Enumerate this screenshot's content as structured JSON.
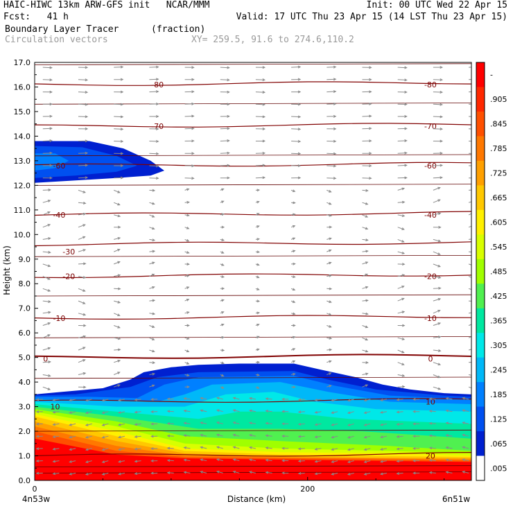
{
  "header": {
    "line1_left": "HAIC-HIWC 13km ARW-GFS init   NCAR/MMM",
    "line1_right": "Init: 00 UTC Wed 22 Apr 15",
    "line2_left": "Fcst:   41 h",
    "line2_right": "Valid: 17 UTC Thu 23 Apr 15 (14 LST Thu 23 Apr 15)",
    "field_name": "Boundary Layer Tracer",
    "field_units": "(fraction)",
    "vectors_label": "Circulation vectors",
    "cross_section": "XY= 259.5, 91.6 to 274.6,110.2"
  },
  "chart_data": {
    "type": "heatmap",
    "title": "Boundary Layer Tracer",
    "units": "(fraction)",
    "xlabel": "Distance (km)",
    "ylabel": "Height (km)",
    "xlim": [
      0,
      320
    ],
    "ylim": [
      0,
      17
    ],
    "x_tick_values": [
      0,
      200
    ],
    "x_tick_labels": [
      "0",
      "200"
    ],
    "x_end_labels": [
      "4n53w",
      "6n51w"
    ],
    "y_tick_values": [
      0,
      1,
      2,
      3,
      4,
      5,
      6,
      7,
      8,
      9,
      10,
      11,
      12,
      13,
      14,
      15,
      16,
      17
    ],
    "y_tick_labels": [
      "0.0",
      "1.0",
      "2.0",
      "3.0",
      "4.0",
      "5.0",
      "6.0",
      "7.0",
      "8.0",
      "9.0",
      "10.0",
      "11.0",
      "12.0",
      "13.0",
      "14.0",
      "15.0",
      "16.0",
      "17.0"
    ],
    "colorbar_labels": [
      "-",
      ".905",
      ".845",
      ".785",
      ".725",
      ".665",
      ".605",
      ".545",
      ".485",
      ".425",
      ".365",
      ".305",
      ".245",
      ".185",
      ".125",
      ".065",
      ".005"
    ],
    "colors": [
      "#ff0000",
      "#ff2800",
      "#ff5000",
      "#ff7800",
      "#ffa000",
      "#ffc800",
      "#fff000",
      "#d8ff00",
      "#a0ff00",
      "#50f050",
      "#00e8a0",
      "#00e8e8",
      "#00b8f8",
      "#0080ff",
      "#0050f0",
      "#0020d0",
      "#ffffff"
    ],
    "isotherm_levels": [
      20,
      10,
      0,
      -10,
      -20,
      -30,
      -40,
      -60,
      -70,
      -80
    ],
    "isotherm_heights_km": [
      {
        "t": 20,
        "h": 1.0
      },
      {
        "t": 10,
        "h": 3.2
      },
      {
        "t": 0,
        "h": 5.0
      },
      {
        "t": -10,
        "h": 6.6
      },
      {
        "t": -20,
        "h": 8.3
      },
      {
        "t": -30,
        "h": 9.6
      },
      {
        "t": -40,
        "h": 10.8
      },
      {
        "t": -60,
        "h": 12.8
      },
      {
        "t": -70,
        "h": 14.4
      },
      {
        "t": -80,
        "h": 16.1
      }
    ],
    "isotherm_labels": [
      {
        "text": "20",
        "x": 290,
        "h": 1.0
      },
      {
        "text": "10",
        "x": 15,
        "h": 3.0
      },
      {
        "text": "10",
        "x": 290,
        "h": 3.2
      },
      {
        "text": "0",
        "x": 8,
        "h": 4.95
      },
      {
        "text": "0",
        "x": 290,
        "h": 4.95
      },
      {
        "text": "-10",
        "x": 18,
        "h": 6.6
      },
      {
        "text": "-10",
        "x": 290,
        "h": 6.6
      },
      {
        "text": "-20",
        "x": 25,
        "h": 8.3
      },
      {
        "text": "-20",
        "x": 290,
        "h": 8.3
      },
      {
        "text": "-30",
        "x": 25,
        "h": 9.3
      },
      {
        "text": "-40",
        "x": 18,
        "h": 10.8
      },
      {
        "text": "-40",
        "x": 290,
        "h": 10.8
      },
      {
        "text": "-60",
        "x": 18,
        "h": 12.8
      },
      {
        "text": "-60",
        "x": 290,
        "h": 12.8
      },
      {
        "text": "-70",
        "x": 90,
        "h": 14.4
      },
      {
        "text": "-70",
        "x": 290,
        "h": 14.4
      },
      {
        "text": "-80",
        "x": 90,
        "h": 16.1
      },
      {
        "text": "-80",
        "x": 290,
        "h": 16.1
      }
    ],
    "tracer_layers": [
      {
        "value": 0.005,
        "color": "#0020d0",
        "top": [
          [
            0,
            3.5
          ],
          [
            20,
            3.6
          ],
          [
            50,
            3.75
          ],
          [
            70,
            4.1
          ],
          [
            80,
            4.4
          ],
          [
            100,
            4.6
          ],
          [
            120,
            4.7
          ],
          [
            150,
            4.75
          ],
          [
            190,
            4.75
          ],
          [
            210,
            4.5
          ],
          [
            235,
            4.2
          ],
          [
            255,
            3.9
          ],
          [
            275,
            3.7
          ],
          [
            300,
            3.55
          ],
          [
            320,
            3.5
          ]
        ]
      },
      {
        "value": 0.065,
        "color": "#0050f0",
        "top": [
          [
            0,
            3.45
          ],
          [
            30,
            3.5
          ],
          [
            70,
            3.8
          ],
          [
            90,
            4.2
          ],
          [
            120,
            4.4
          ],
          [
            190,
            4.45
          ],
          [
            215,
            4.1
          ],
          [
            250,
            3.7
          ],
          [
            300,
            3.45
          ],
          [
            320,
            3.4
          ]
        ]
      },
      {
        "value": 0.125,
        "color": "#0080ff",
        "top": [
          [
            0,
            3.4
          ],
          [
            40,
            3.4
          ],
          [
            75,
            3.35
          ],
          [
            95,
            3.9
          ],
          [
            120,
            4.2
          ],
          [
            190,
            4.25
          ],
          [
            220,
            3.85
          ],
          [
            260,
            3.45
          ],
          [
            300,
            3.35
          ],
          [
            320,
            3.3
          ]
        ]
      },
      {
        "value": 0.185,
        "color": "#00b8f8",
        "top": [
          [
            0,
            3.3
          ],
          [
            50,
            3.25
          ],
          [
            90,
            3.2
          ],
          [
            110,
            3.5
          ],
          [
            130,
            3.9
          ],
          [
            180,
            4.0
          ],
          [
            215,
            3.6
          ],
          [
            260,
            3.2
          ],
          [
            320,
            3.1
          ]
        ]
      },
      {
        "value": 0.245,
        "color": "#00e8e8",
        "top": [
          [
            0,
            3.2
          ],
          [
            60,
            3.0
          ],
          [
            110,
            3.0
          ],
          [
            140,
            3.5
          ],
          [
            175,
            3.6
          ],
          [
            205,
            3.2
          ],
          [
            250,
            2.9
          ],
          [
            320,
            2.8
          ]
        ]
      },
      {
        "value": 0.305,
        "color": "#00e8a0",
        "top": [
          [
            0,
            3.1
          ],
          [
            60,
            2.8
          ],
          [
            120,
            2.5
          ],
          [
            150,
            2.8
          ],
          [
            180,
            2.8
          ],
          [
            230,
            2.5
          ],
          [
            320,
            2.3
          ]
        ]
      },
      {
        "value": 0.365,
        "color": "#50f050",
        "top": [
          [
            0,
            3.0
          ],
          [
            60,
            2.6
          ],
          [
            120,
            2.1
          ],
          [
            180,
            2.1
          ],
          [
            240,
            2.0
          ],
          [
            320,
            1.7
          ]
        ]
      },
      {
        "value": 0.425,
        "color": "#a0ff00",
        "top": [
          [
            0,
            2.9
          ],
          [
            60,
            2.4
          ],
          [
            110,
            1.8
          ],
          [
            180,
            1.6
          ],
          [
            260,
            1.4
          ],
          [
            320,
            1.2
          ]
        ]
      },
      {
        "value": 0.485,
        "color": "#d8ff00",
        "top": [
          [
            0,
            2.8
          ],
          [
            60,
            2.2
          ],
          [
            110,
            1.5
          ],
          [
            180,
            1.3
          ],
          [
            260,
            1.2
          ],
          [
            320,
            1.1
          ]
        ]
      },
      {
        "value": 0.545,
        "color": "#fff000",
        "top": [
          [
            0,
            2.7
          ],
          [
            60,
            2.0
          ],
          [
            110,
            1.3
          ],
          [
            180,
            1.15
          ],
          [
            260,
            1.1
          ],
          [
            320,
            1.0
          ]
        ]
      },
      {
        "value": 0.605,
        "color": "#ffc800",
        "top": [
          [
            0,
            2.6
          ],
          [
            60,
            1.8
          ],
          [
            110,
            1.2
          ],
          [
            180,
            1.05
          ],
          [
            320,
            0.95
          ]
        ]
      },
      {
        "value": 0.665,
        "color": "#ffa000",
        "top": [
          [
            0,
            2.4
          ],
          [
            60,
            1.6
          ],
          [
            110,
            1.1
          ],
          [
            180,
            0.95
          ],
          [
            320,
            0.9
          ]
        ]
      },
      {
        "value": 0.725,
        "color": "#ff7800",
        "top": [
          [
            0,
            2.2
          ],
          [
            60,
            1.4
          ],
          [
            110,
            1.0
          ],
          [
            320,
            0.85
          ]
        ]
      },
      {
        "value": 0.785,
        "color": "#ff5000",
        "top": [
          [
            0,
            2.0
          ],
          [
            60,
            1.2
          ],
          [
            110,
            0.95
          ],
          [
            320,
            0.8
          ]
        ]
      },
      {
        "value": 0.905,
        "color": "#ff0000",
        "top": [
          [
            0,
            1.7
          ],
          [
            60,
            1.05
          ],
          [
            110,
            0.9
          ],
          [
            320,
            0.75
          ]
        ]
      }
    ],
    "upper_tracer_layers": [
      {
        "value": 0.005,
        "color": "#0020d0",
        "poly": [
          [
            0,
            12.1
          ],
          [
            0,
            13.8
          ],
          [
            40,
            13.8
          ],
          [
            65,
            13.5
          ],
          [
            85,
            13.0
          ],
          [
            95,
            12.6
          ],
          [
            85,
            12.4
          ],
          [
            60,
            12.3
          ],
          [
            30,
            12.2
          ]
        ]
      },
      {
        "value": 0.065,
        "color": "#0050f0",
        "poly": [
          [
            0,
            12.3
          ],
          [
            0,
            13.6
          ],
          [
            35,
            13.55
          ],
          [
            60,
            13.2
          ],
          [
            75,
            12.8
          ],
          [
            60,
            12.55
          ],
          [
            30,
            12.4
          ]
        ]
      },
      {
        "value": 0.125,
        "color": "#0080ff",
        "poly": [
          [
            0,
            12.6
          ],
          [
            0,
            13.3
          ],
          [
            15,
            13.3
          ],
          [
            25,
            13.0
          ],
          [
            15,
            12.7
          ]
        ]
      }
    ]
  }
}
